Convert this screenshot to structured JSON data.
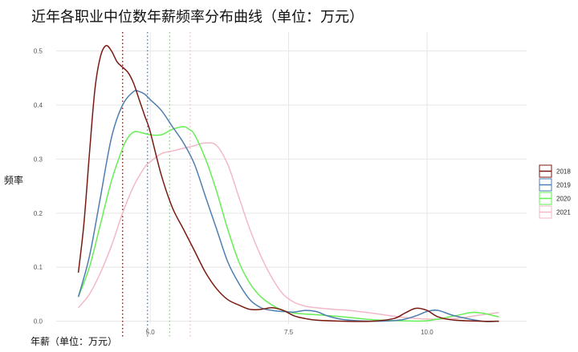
{
  "chart_data": {
    "type": "line",
    "title": "近年各职业中位数年薪频率分布曲线（单位：万元）",
    "xlabel": "年薪（单位：万元）",
    "ylabel": "频率",
    "xlim": [
      3.3,
      11.8
    ],
    "ylim": [
      -0.005,
      0.535
    ],
    "x_ticks": [
      {
        "value": 5.0,
        "label": "5.0"
      },
      {
        "value": 7.5,
        "label": "7.5"
      },
      {
        "value": 10.0,
        "label": "10.0"
      }
    ],
    "y_ticks": [
      {
        "value": 0.0,
        "label": "0.0"
      },
      {
        "value": 0.1,
        "label": "0.1"
      },
      {
        "value": 0.2,
        "label": "0.2"
      },
      {
        "value": 0.3,
        "label": "0.3"
      },
      {
        "value": 0.4,
        "label": "0.4"
      },
      {
        "value": 0.5,
        "label": "0.5"
      }
    ],
    "grid": true,
    "legend": "right",
    "series": [
      {
        "name": "2018",
        "color": "#7a1b12",
        "median": 4.5,
        "x": [
          3.7,
          3.8,
          3.9,
          4.0,
          4.1,
          4.2,
          4.3,
          4.4,
          4.5,
          4.6,
          4.7,
          4.8,
          4.9,
          5.0,
          5.2,
          5.4,
          5.6,
          5.8,
          6.0,
          6.2,
          6.4,
          6.6,
          6.8,
          7.0,
          7.2,
          7.4,
          7.6,
          7.8,
          8.0,
          8.5,
          9.0,
          9.4,
          9.6,
          9.8,
          10.0,
          10.2,
          10.5,
          11.0,
          11.3
        ],
        "y": [
          0.09,
          0.18,
          0.31,
          0.43,
          0.49,
          0.51,
          0.5,
          0.48,
          0.47,
          0.46,
          0.44,
          0.41,
          0.38,
          0.35,
          0.27,
          0.21,
          0.17,
          0.13,
          0.09,
          0.06,
          0.04,
          0.03,
          0.022,
          0.022,
          0.025,
          0.02,
          0.01,
          0.005,
          0.002,
          0.0,
          0.0,
          0.005,
          0.015,
          0.024,
          0.02,
          0.008,
          0.002,
          0.0,
          0.0
        ]
      },
      {
        "name": "2019",
        "color": "#4e7fb0",
        "median": 4.95,
        "x": [
          3.7,
          3.9,
          4.1,
          4.3,
          4.5,
          4.7,
          4.8,
          4.9,
          5.0,
          5.2,
          5.4,
          5.6,
          5.8,
          6.0,
          6.2,
          6.4,
          6.6,
          6.8,
          7.0,
          7.2,
          7.4,
          7.6,
          7.8,
          8.0,
          8.2,
          8.5,
          9.0,
          9.5,
          9.8,
          10.0,
          10.2,
          10.5,
          11.0,
          11.3
        ],
        "y": [
          0.045,
          0.12,
          0.23,
          0.34,
          0.4,
          0.425,
          0.425,
          0.42,
          0.41,
          0.39,
          0.36,
          0.33,
          0.29,
          0.23,
          0.17,
          0.11,
          0.07,
          0.04,
          0.025,
          0.02,
          0.018,
          0.017,
          0.02,
          0.018,
          0.01,
          0.003,
          0.0,
          0.002,
          0.01,
          0.018,
          0.02,
          0.01,
          0.0,
          0.0
        ]
      },
      {
        "name": "2020",
        "color": "#66ee55",
        "median": 5.35,
        "x": [
          3.7,
          3.9,
          4.1,
          4.3,
          4.5,
          4.6,
          4.7,
          4.8,
          5.0,
          5.2,
          5.4,
          5.6,
          5.7,
          5.8,
          6.0,
          6.2,
          6.4,
          6.6,
          6.8,
          7.0,
          7.2,
          7.4,
          7.6,
          8.0,
          8.5,
          9.0,
          9.5,
          10.0,
          10.5,
          10.8,
          11.0,
          11.3
        ],
        "y": [
          0.045,
          0.1,
          0.18,
          0.26,
          0.32,
          0.34,
          0.35,
          0.35,
          0.345,
          0.345,
          0.355,
          0.36,
          0.355,
          0.345,
          0.3,
          0.24,
          0.17,
          0.11,
          0.07,
          0.045,
          0.03,
          0.02,
          0.015,
          0.012,
          0.008,
          0.003,
          0.001,
          0.001,
          0.01,
          0.016,
          0.015,
          0.008
        ]
      },
      {
        "name": "2021",
        "color": "#f2b8c6",
        "median": 5.72,
        "x": [
          3.7,
          3.9,
          4.1,
          4.3,
          4.5,
          4.7,
          4.9,
          5.0,
          5.2,
          5.4,
          5.6,
          5.8,
          6.0,
          6.2,
          6.4,
          6.6,
          6.8,
          7.0,
          7.2,
          7.4,
          7.6,
          7.8,
          8.0,
          8.3,
          8.6,
          9.0,
          9.5,
          10.0,
          10.5,
          11.0,
          11.3
        ],
        "y": [
          0.025,
          0.05,
          0.09,
          0.14,
          0.2,
          0.25,
          0.285,
          0.295,
          0.31,
          0.315,
          0.32,
          0.325,
          0.33,
          0.325,
          0.29,
          0.23,
          0.17,
          0.12,
          0.08,
          0.05,
          0.035,
          0.028,
          0.025,
          0.022,
          0.02,
          0.015,
          0.008,
          0.004,
          0.005,
          0.012,
          0.016
        ]
      }
    ]
  }
}
